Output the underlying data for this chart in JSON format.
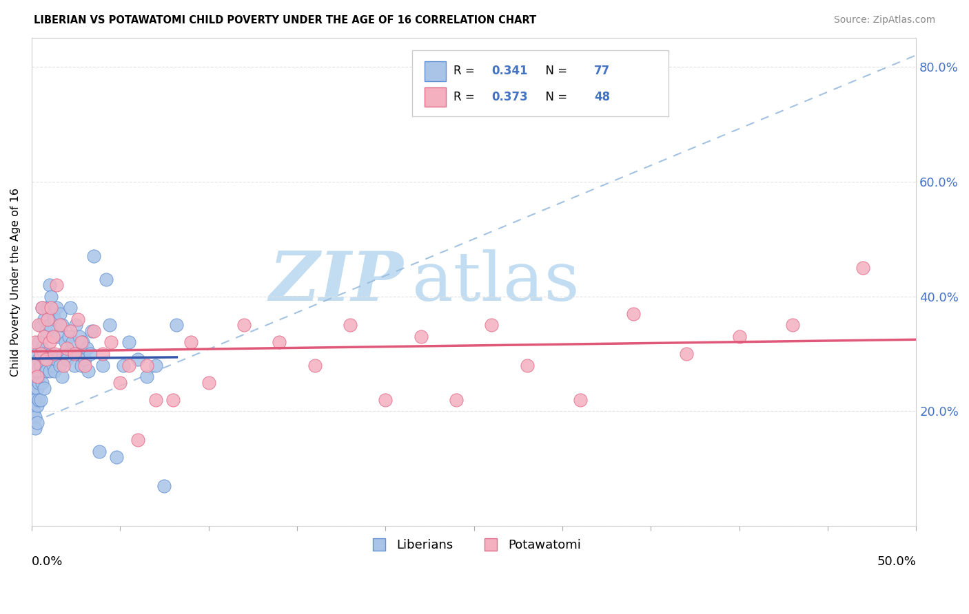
{
  "title": "LIBERIAN VS POTAWATOMI CHILD POVERTY UNDER THE AGE OF 16 CORRELATION CHART",
  "source": "Source: ZipAtlas.com",
  "ylabel": "Child Poverty Under the Age of 16",
  "liberian_color": "#aac4e8",
  "liberian_edge_color": "#6090d0",
  "potawatomi_color": "#f5b0c0",
  "potawatomi_edge_color": "#e06888",
  "liberian_line_color": "#3355aa",
  "potawatomi_line_color": "#e05878",
  "dashed_line_color": "#99bbdd",
  "watermark_zip": "ZIP",
  "watermark_atlas": "atlas",
  "r_liberian": "0.341",
  "n_liberian": "77",
  "r_potawatomi": "0.373",
  "n_potawatomi": "48",
  "xlim": [
    0.0,
    0.5
  ],
  "ylim": [
    0.0,
    0.85
  ],
  "yticks": [
    0.0,
    0.2,
    0.4,
    0.6,
    0.8
  ],
  "ytick_labels": [
    "",
    "20.0%",
    "40.0%",
    "60.0%",
    "80.0%"
  ],
  "xtick_label_left": "0.0%",
  "xtick_label_right": "50.0%",
  "label_liberians": "Liberians",
  "label_potawatomi": "Potawatomi",
  "background_color": "#ffffff",
  "grid_color": "#e0e0e0",
  "accent_color": "#4472c4",
  "lib_x": [
    0.001,
    0.001,
    0.001,
    0.001,
    0.002,
    0.002,
    0.002,
    0.002,
    0.002,
    0.003,
    0.003,
    0.003,
    0.003,
    0.003,
    0.004,
    0.004,
    0.004,
    0.004,
    0.005,
    0.005,
    0.005,
    0.006,
    0.006,
    0.006,
    0.007,
    0.007,
    0.007,
    0.008,
    0.008,
    0.009,
    0.009,
    0.01,
    0.01,
    0.01,
    0.011,
    0.011,
    0.012,
    0.012,
    0.013,
    0.013,
    0.014,
    0.014,
    0.015,
    0.016,
    0.016,
    0.017,
    0.017,
    0.018,
    0.019,
    0.02,
    0.021,
    0.022,
    0.023,
    0.024,
    0.025,
    0.026,
    0.027,
    0.028,
    0.029,
    0.03,
    0.031,
    0.032,
    0.033,
    0.034,
    0.035,
    0.038,
    0.04,
    0.042,
    0.044,
    0.048,
    0.052,
    0.055,
    0.06,
    0.065,
    0.07,
    0.075,
    0.082
  ],
  "lib_y": [
    0.26,
    0.24,
    0.22,
    0.2,
    0.28,
    0.25,
    0.22,
    0.19,
    0.17,
    0.3,
    0.27,
    0.24,
    0.21,
    0.18,
    0.32,
    0.29,
    0.25,
    0.22,
    0.35,
    0.28,
    0.22,
    0.38,
    0.31,
    0.25,
    0.36,
    0.3,
    0.24,
    0.34,
    0.27,
    0.38,
    0.29,
    0.42,
    0.35,
    0.27,
    0.4,
    0.3,
    0.37,
    0.28,
    0.36,
    0.27,
    0.38,
    0.29,
    0.33,
    0.37,
    0.28,
    0.35,
    0.26,
    0.3,
    0.32,
    0.29,
    0.33,
    0.38,
    0.32,
    0.28,
    0.35,
    0.3,
    0.33,
    0.28,
    0.32,
    0.29,
    0.31,
    0.27,
    0.3,
    0.34,
    0.47,
    0.13,
    0.28,
    0.43,
    0.35,
    0.12,
    0.28,
    0.32,
    0.29,
    0.26,
    0.28,
    0.07,
    0.35
  ],
  "pot_x": [
    0.001,
    0.002,
    0.003,
    0.004,
    0.005,
    0.006,
    0.007,
    0.008,
    0.009,
    0.01,
    0.011,
    0.012,
    0.013,
    0.014,
    0.016,
    0.018,
    0.02,
    0.022,
    0.024,
    0.026,
    0.028,
    0.03,
    0.035,
    0.04,
    0.045,
    0.05,
    0.055,
    0.06,
    0.065,
    0.07,
    0.08,
    0.09,
    0.1,
    0.12,
    0.14,
    0.16,
    0.18,
    0.2,
    0.22,
    0.24,
    0.26,
    0.28,
    0.31,
    0.34,
    0.37,
    0.4,
    0.43,
    0.47
  ],
  "pot_y": [
    0.28,
    0.32,
    0.26,
    0.35,
    0.3,
    0.38,
    0.33,
    0.29,
    0.36,
    0.32,
    0.38,
    0.33,
    0.3,
    0.42,
    0.35,
    0.28,
    0.31,
    0.34,
    0.3,
    0.36,
    0.32,
    0.28,
    0.34,
    0.3,
    0.32,
    0.25,
    0.28,
    0.15,
    0.28,
    0.22,
    0.22,
    0.32,
    0.25,
    0.35,
    0.32,
    0.28,
    0.35,
    0.22,
    0.33,
    0.22,
    0.35,
    0.28,
    0.22,
    0.37,
    0.3,
    0.33,
    0.35,
    0.45
  ]
}
